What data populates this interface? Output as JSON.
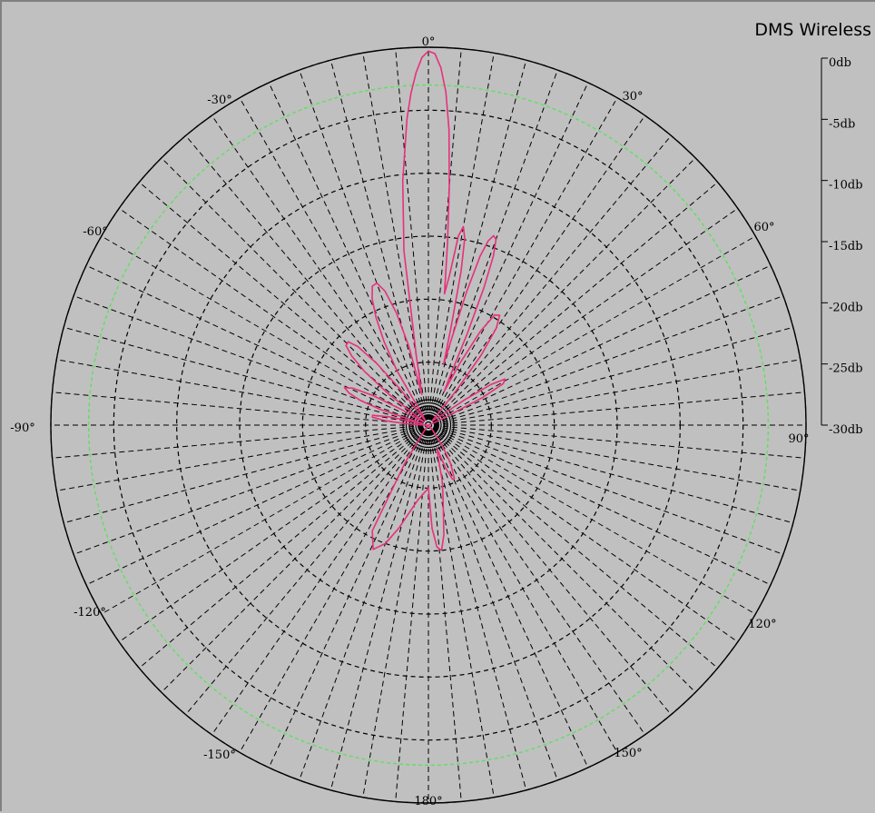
{
  "title": "DMS Wireless",
  "chart_data": {
    "type": "polar",
    "angle_labels": [
      {
        "deg": 0,
        "text": "0°"
      },
      {
        "deg": 30,
        "text": "30°"
      },
      {
        "deg": 60,
        "text": "60°"
      },
      {
        "deg": 90,
        "text": "90°"
      },
      {
        "deg": 120,
        "text": "120°"
      },
      {
        "deg": 150,
        "text": "150°"
      },
      {
        "deg": 180,
        "text": "180°"
      },
      {
        "deg": -150,
        "text": "-150°"
      },
      {
        "deg": -120,
        "text": "-120°"
      },
      {
        "deg": -90,
        "text": "-90°"
      },
      {
        "deg": -60,
        "text": "-60°"
      },
      {
        "deg": -30,
        "text": "-30°"
      }
    ],
    "radial_scale": {
      "unit": "db",
      "min_db": -30,
      "max_db": 0,
      "labels": [
        "0db",
        "-5db",
        "-10db",
        "-15db",
        "-20db",
        "-25db",
        "-30db"
      ]
    },
    "reference_level_db": -3,
    "colors": {
      "pattern": "#e8307a",
      "reference": "#5ee05e",
      "grid": "#000000",
      "background": "#c0c0c0"
    },
    "series": [
      {
        "points": [
          [
            -180,
            -25.0
          ],
          [
            -172,
            -24.0
          ],
          [
            -168,
            -23.0
          ],
          [
            -164,
            -21.5
          ],
          [
            -160,
            -20.0
          ],
          [
            -156,
            -19.2
          ],
          [
            -152,
            -20.5
          ],
          [
            -148,
            -26.5
          ],
          [
            -144,
            -29.5
          ],
          [
            -130,
            -30
          ],
          [
            -110,
            -30
          ],
          [
            -95,
            -30
          ],
          [
            -88,
            -29.5
          ],
          [
            -86,
            -28
          ],
          [
            -84,
            -26.5
          ],
          [
            -82,
            -25.5
          ],
          [
            -80,
            -25.5
          ],
          [
            -78,
            -26.8
          ],
          [
            -76,
            -29.5
          ],
          [
            -74,
            -29.5
          ],
          [
            -72,
            -26
          ],
          [
            -70,
            -24.2
          ],
          [
            -68,
            -23.2
          ],
          [
            -66,
            -22.7
          ],
          [
            -64,
            -23.3
          ],
          [
            -62,
            -25
          ],
          [
            -60,
            -27.5
          ],
          [
            -58,
            -29.5
          ],
          [
            -54,
            -29.5
          ],
          [
            -52,
            -26
          ],
          [
            -50,
            -23.4
          ],
          [
            -48,
            -21.8
          ],
          [
            -46,
            -20.9
          ],
          [
            -44,
            -20.8
          ],
          [
            -42,
            -21.6
          ],
          [
            -40,
            -23.6
          ],
          [
            -38,
            -26.5
          ],
          [
            -36,
            -29.5
          ],
          [
            -32,
            -29.5
          ],
          [
            -30,
            -25
          ],
          [
            -28,
            -22.5
          ],
          [
            -26,
            -20.5
          ],
          [
            -24,
            -19.0
          ],
          [
            -22,
            -18.1
          ],
          [
            -20,
            -18.0
          ],
          [
            -18,
            -18.8
          ],
          [
            -16,
            -20.7
          ],
          [
            -14,
            -23.5
          ],
          [
            -12,
            -27.5
          ],
          [
            -10,
            -24.5
          ],
          [
            -8,
            -16
          ],
          [
            -6,
            -10.5
          ],
          [
            -4,
            -5.6
          ],
          [
            -3,
            -3.6
          ],
          [
            -2,
            -2.0
          ],
          [
            -1,
            -0.8
          ],
          [
            0,
            -0.3
          ],
          [
            1,
            -0.5
          ],
          [
            2,
            -1.6
          ],
          [
            3,
            -3.5
          ],
          [
            4,
            -6.5
          ],
          [
            5,
            -11
          ],
          [
            6,
            -15.5
          ],
          [
            7,
            -19.5
          ],
          [
            8,
            -18
          ],
          [
            9,
            -14.8
          ],
          [
            10,
            -14
          ],
          [
            11,
            -14.9
          ],
          [
            12,
            -17.5
          ],
          [
            13,
            -22
          ],
          [
            14,
            -25
          ],
          [
            15,
            -23
          ],
          [
            16,
            -19
          ],
          [
            17,
            -16
          ],
          [
            18,
            -14.6
          ],
          [
            19,
            -14.1
          ],
          [
            20,
            -14.3
          ],
          [
            21,
            -15.6
          ],
          [
            22,
            -18.2
          ],
          [
            23,
            -22
          ],
          [
            24,
            -26
          ],
          [
            25,
            -27
          ],
          [
            27,
            -24.5
          ],
          [
            29,
            -21.5
          ],
          [
            31,
            -19.8
          ],
          [
            33,
            -19.6
          ],
          [
            35,
            -20.6
          ],
          [
            37,
            -23
          ],
          [
            39,
            -26.5
          ],
          [
            41,
            -29.5
          ],
          [
            45,
            -29.5
          ],
          [
            52,
            -29
          ],
          [
            55,
            -26.5
          ],
          [
            57,
            -24.1
          ],
          [
            59,
            -22.9
          ],
          [
            61,
            -23.2
          ],
          [
            63,
            -25.2
          ],
          [
            65,
            -28.5
          ],
          [
            67,
            -29.5
          ],
          [
            90,
            -30
          ],
          [
            120,
            -30
          ],
          [
            140,
            -29.5
          ],
          [
            146,
            -28
          ],
          [
            150,
            -26.5
          ],
          [
            154,
            -25.3
          ],
          [
            156,
            -25.3
          ],
          [
            158,
            -26.3
          ],
          [
            160,
            -28
          ],
          [
            164,
            -27
          ],
          [
            166,
            -25.5
          ],
          [
            168,
            -24.5
          ],
          [
            170,
            -23.2
          ],
          [
            172,
            -21.2
          ],
          [
            174,
            -20
          ],
          [
            176,
            -20.3
          ],
          [
            178,
            -21.8
          ],
          [
            180,
            -25.0
          ]
        ]
      }
    ]
  }
}
